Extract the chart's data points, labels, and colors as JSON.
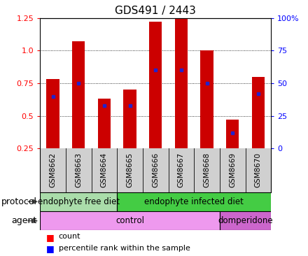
{
  "title": "GDS491 / 2443",
  "samples": [
    "GSM8662",
    "GSM8663",
    "GSM8664",
    "GSM8665",
    "GSM8666",
    "GSM8667",
    "GSM8668",
    "GSM8669",
    "GSM8670"
  ],
  "counts": [
    0.78,
    1.07,
    0.63,
    0.7,
    1.22,
    1.25,
    1.0,
    0.47,
    0.8
  ],
  "percentiles": [
    40,
    50,
    33,
    33,
    60,
    60,
    50,
    12,
    42
  ],
  "ylim_left": [
    0.25,
    1.25
  ],
  "ylim_right": [
    0,
    100
  ],
  "yticks_left": [
    0.25,
    0.5,
    0.75,
    1.0,
    1.25
  ],
  "yticks_right": [
    0,
    25,
    50,
    75,
    100
  ],
  "ytick_labels_right": [
    "0",
    "25",
    "50",
    "75",
    "100%"
  ],
  "bar_color": "#cc0000",
  "dot_color": "#2222cc",
  "bar_width": 0.5,
  "protocol_groups": [
    {
      "label": "endophyte free diet",
      "start": 0,
      "end": 3,
      "color": "#aaddaa"
    },
    {
      "label": "endophyte infected diet",
      "start": 3,
      "end": 9,
      "color": "#44cc44"
    }
  ],
  "agent_groups": [
    {
      "label": "control",
      "start": 0,
      "end": 7,
      "color": "#ee99ee"
    },
    {
      "label": "domperidone",
      "start": 7,
      "end": 9,
      "color": "#cc66cc"
    }
  ],
  "legend_count_label": "count",
  "legend_pct_label": "percentile rank within the sample",
  "plot_bg_color": "#ffffff",
  "sample_box_color": "#d0d0d0",
  "title_fontsize": 11,
  "tick_fontsize": 8,
  "row_label_fontsize": 9,
  "group_label_fontsize": 8.5,
  "sample_fontsize": 7.5,
  "legend_fontsize": 8
}
